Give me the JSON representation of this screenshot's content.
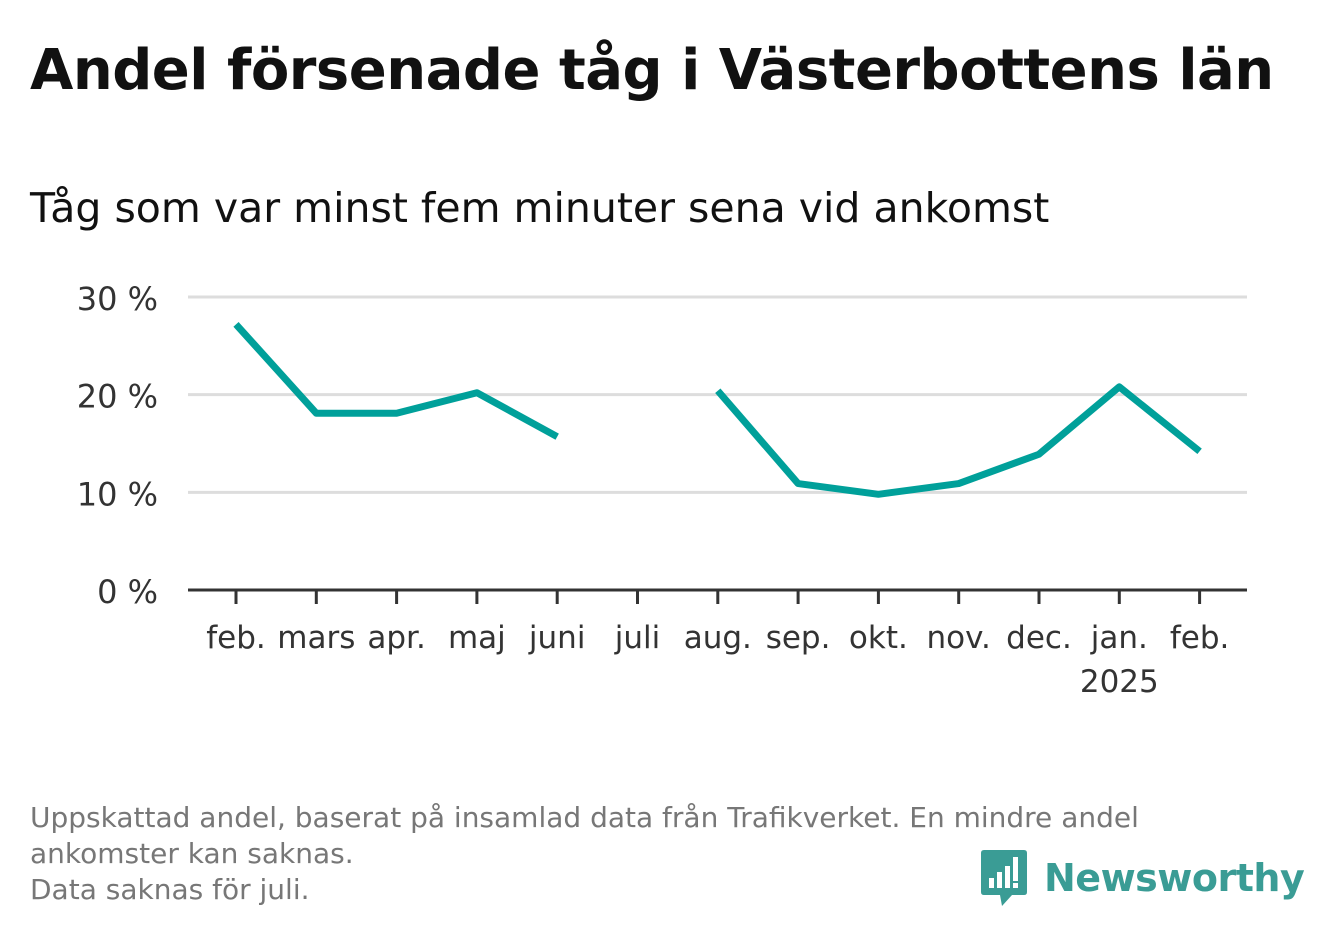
{
  "title": "Andel försenade tåg i Västerbottens län",
  "subtitle": "Tåg som var minst fem minuter sena vid ankomst",
  "footnote": {
    "line1": "Uppskattad andel, baserat på insamlad data från Trafikverket. En mindre andel",
    "line2": "ankomster kan saknas.",
    "line3": "Data saknas för juli."
  },
  "brand": {
    "name": "Newsworthy",
    "icon": "newsworthy-chart-bubble-icon",
    "color": "#3a9c95"
  },
  "chart_data": {
    "type": "line",
    "categories": [
      "feb.",
      "mars",
      "apr.",
      "maj",
      "juni",
      "juli",
      "aug.",
      "sep.",
      "okt.",
      "nov.",
      "dec.",
      "jan.",
      "feb."
    ],
    "year_labels": [
      "",
      "",
      "",
      "",
      "",
      "",
      "",
      "",
      "",
      "",
      "",
      "2025",
      ""
    ],
    "series": [
      {
        "values": [
          27.2,
          18.1,
          18.1,
          20.2,
          15.7,
          null,
          20.4,
          10.9,
          9.8,
          10.9,
          13.9,
          20.8,
          14.2
        ],
        "color": "#00a09a"
      }
    ],
    "yticks": [
      0,
      10,
      20,
      30
    ],
    "ytick_labels": [
      "0 %",
      "10 %",
      "20 %",
      "30 %"
    ],
    "ylim": [
      0,
      30
    ],
    "grid": true,
    "xlabel": "",
    "ylabel": ""
  }
}
